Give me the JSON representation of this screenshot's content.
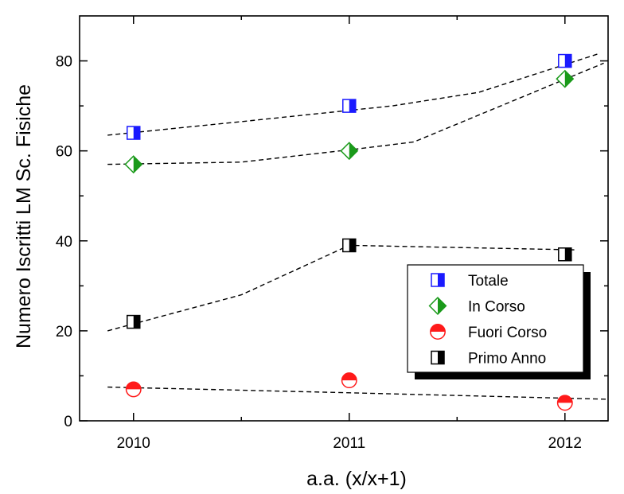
{
  "chart_data": {
    "type": "scatter",
    "title": "",
    "xlabel": "a.a. (x/x+1)",
    "ylabel": "Numero Iscritti LM Sc. Fisiche",
    "x": [
      2010,
      2011,
      2012
    ],
    "x_ticks": [
      2010,
      2011,
      2012
    ],
    "xlim": [
      2009.75,
      2012.2
    ],
    "y_ticks": [
      0,
      20,
      40,
      60,
      80
    ],
    "ylim": [
      0,
      90
    ],
    "grid": false,
    "legend_position": "lower-right",
    "series": [
      {
        "name": "Totale",
        "marker": "half-square",
        "color": "#1a1aff",
        "values": [
          64,
          70,
          80
        ],
        "trend": [
          [
            2009.88,
            63.5
          ],
          [
            2010.5,
            66.5
          ],
          [
            2011.2,
            70
          ],
          [
            2011.6,
            73
          ],
          [
            2012.15,
            81.5
          ]
        ]
      },
      {
        "name": "In Corso",
        "marker": "half-diamond",
        "color": "#1a9a1a",
        "values": [
          57,
          60,
          76
        ],
        "trend": [
          [
            2009.88,
            57
          ],
          [
            2010.5,
            57.5
          ],
          [
            2011.05,
            60.5
          ],
          [
            2011.3,
            62
          ],
          [
            2012.18,
            79.5
          ]
        ]
      },
      {
        "name": "Fuori Corso",
        "marker": "half-circle",
        "color": "#ff1a1a",
        "values": [
          7,
          9,
          4
        ],
        "trend": [
          [
            2009.88,
            7.5
          ],
          [
            2010.5,
            6.8
          ],
          [
            2011.2,
            6
          ],
          [
            2012.2,
            4.8
          ]
        ]
      },
      {
        "name": "Primo Anno",
        "marker": "half-square",
        "color": "#000000",
        "values": [
          22,
          39,
          37
        ],
        "trend": [
          [
            2009.88,
            20
          ],
          [
            2010.5,
            28
          ],
          [
            2011.0,
            39
          ],
          [
            2012.05,
            38
          ]
        ]
      }
    ]
  }
}
